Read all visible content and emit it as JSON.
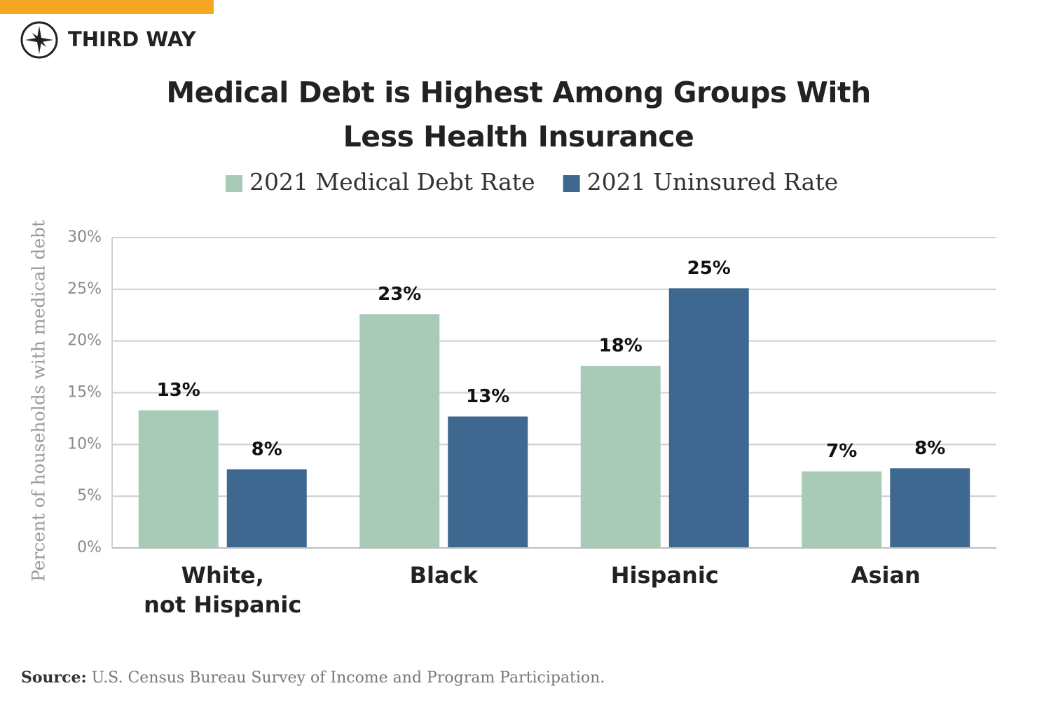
{
  "brand": "THIRD WAY",
  "chart_data": {
    "type": "bar",
    "title": "Medical Debt is Highest Among Groups With Less Health Insurance",
    "y_label": "Percent of households with medical debt",
    "categories": [
      "White,\nnot Hispanic",
      "Black",
      "Hispanic",
      "Asian"
    ],
    "series": [
      {
        "name": "2021 Medical Debt Rate",
        "color": "#a8cbb8",
        "values": [
          13.3,
          22.6,
          17.6,
          7.4
        ],
        "value_labels": [
          "13%",
          "23%",
          "18%",
          "7%"
        ]
      },
      {
        "name": "2021 Uninsured Rate",
        "color": "#3f6890",
        "values": [
          7.6,
          12.7,
          25.1,
          7.7
        ],
        "value_labels": [
          "8%",
          "13%",
          "25%",
          "8%"
        ]
      }
    ],
    "ylim": [
      0,
      30
    ],
    "yticks": [
      {
        "value": 0,
        "label": "0%"
      },
      {
        "value": 5,
        "label": "5%"
      },
      {
        "value": 10,
        "label": "10%"
      },
      {
        "value": 15,
        "label": "15%"
      },
      {
        "value": 20,
        "label": "20%"
      },
      {
        "value": 25,
        "label": "25%"
      },
      {
        "value": 30,
        "label": "30%"
      }
    ],
    "grid": true,
    "legend": "top"
  },
  "source": {
    "label": "Source:",
    "text": "U.S. Census Bureau Survey of Income and Program Participation."
  }
}
